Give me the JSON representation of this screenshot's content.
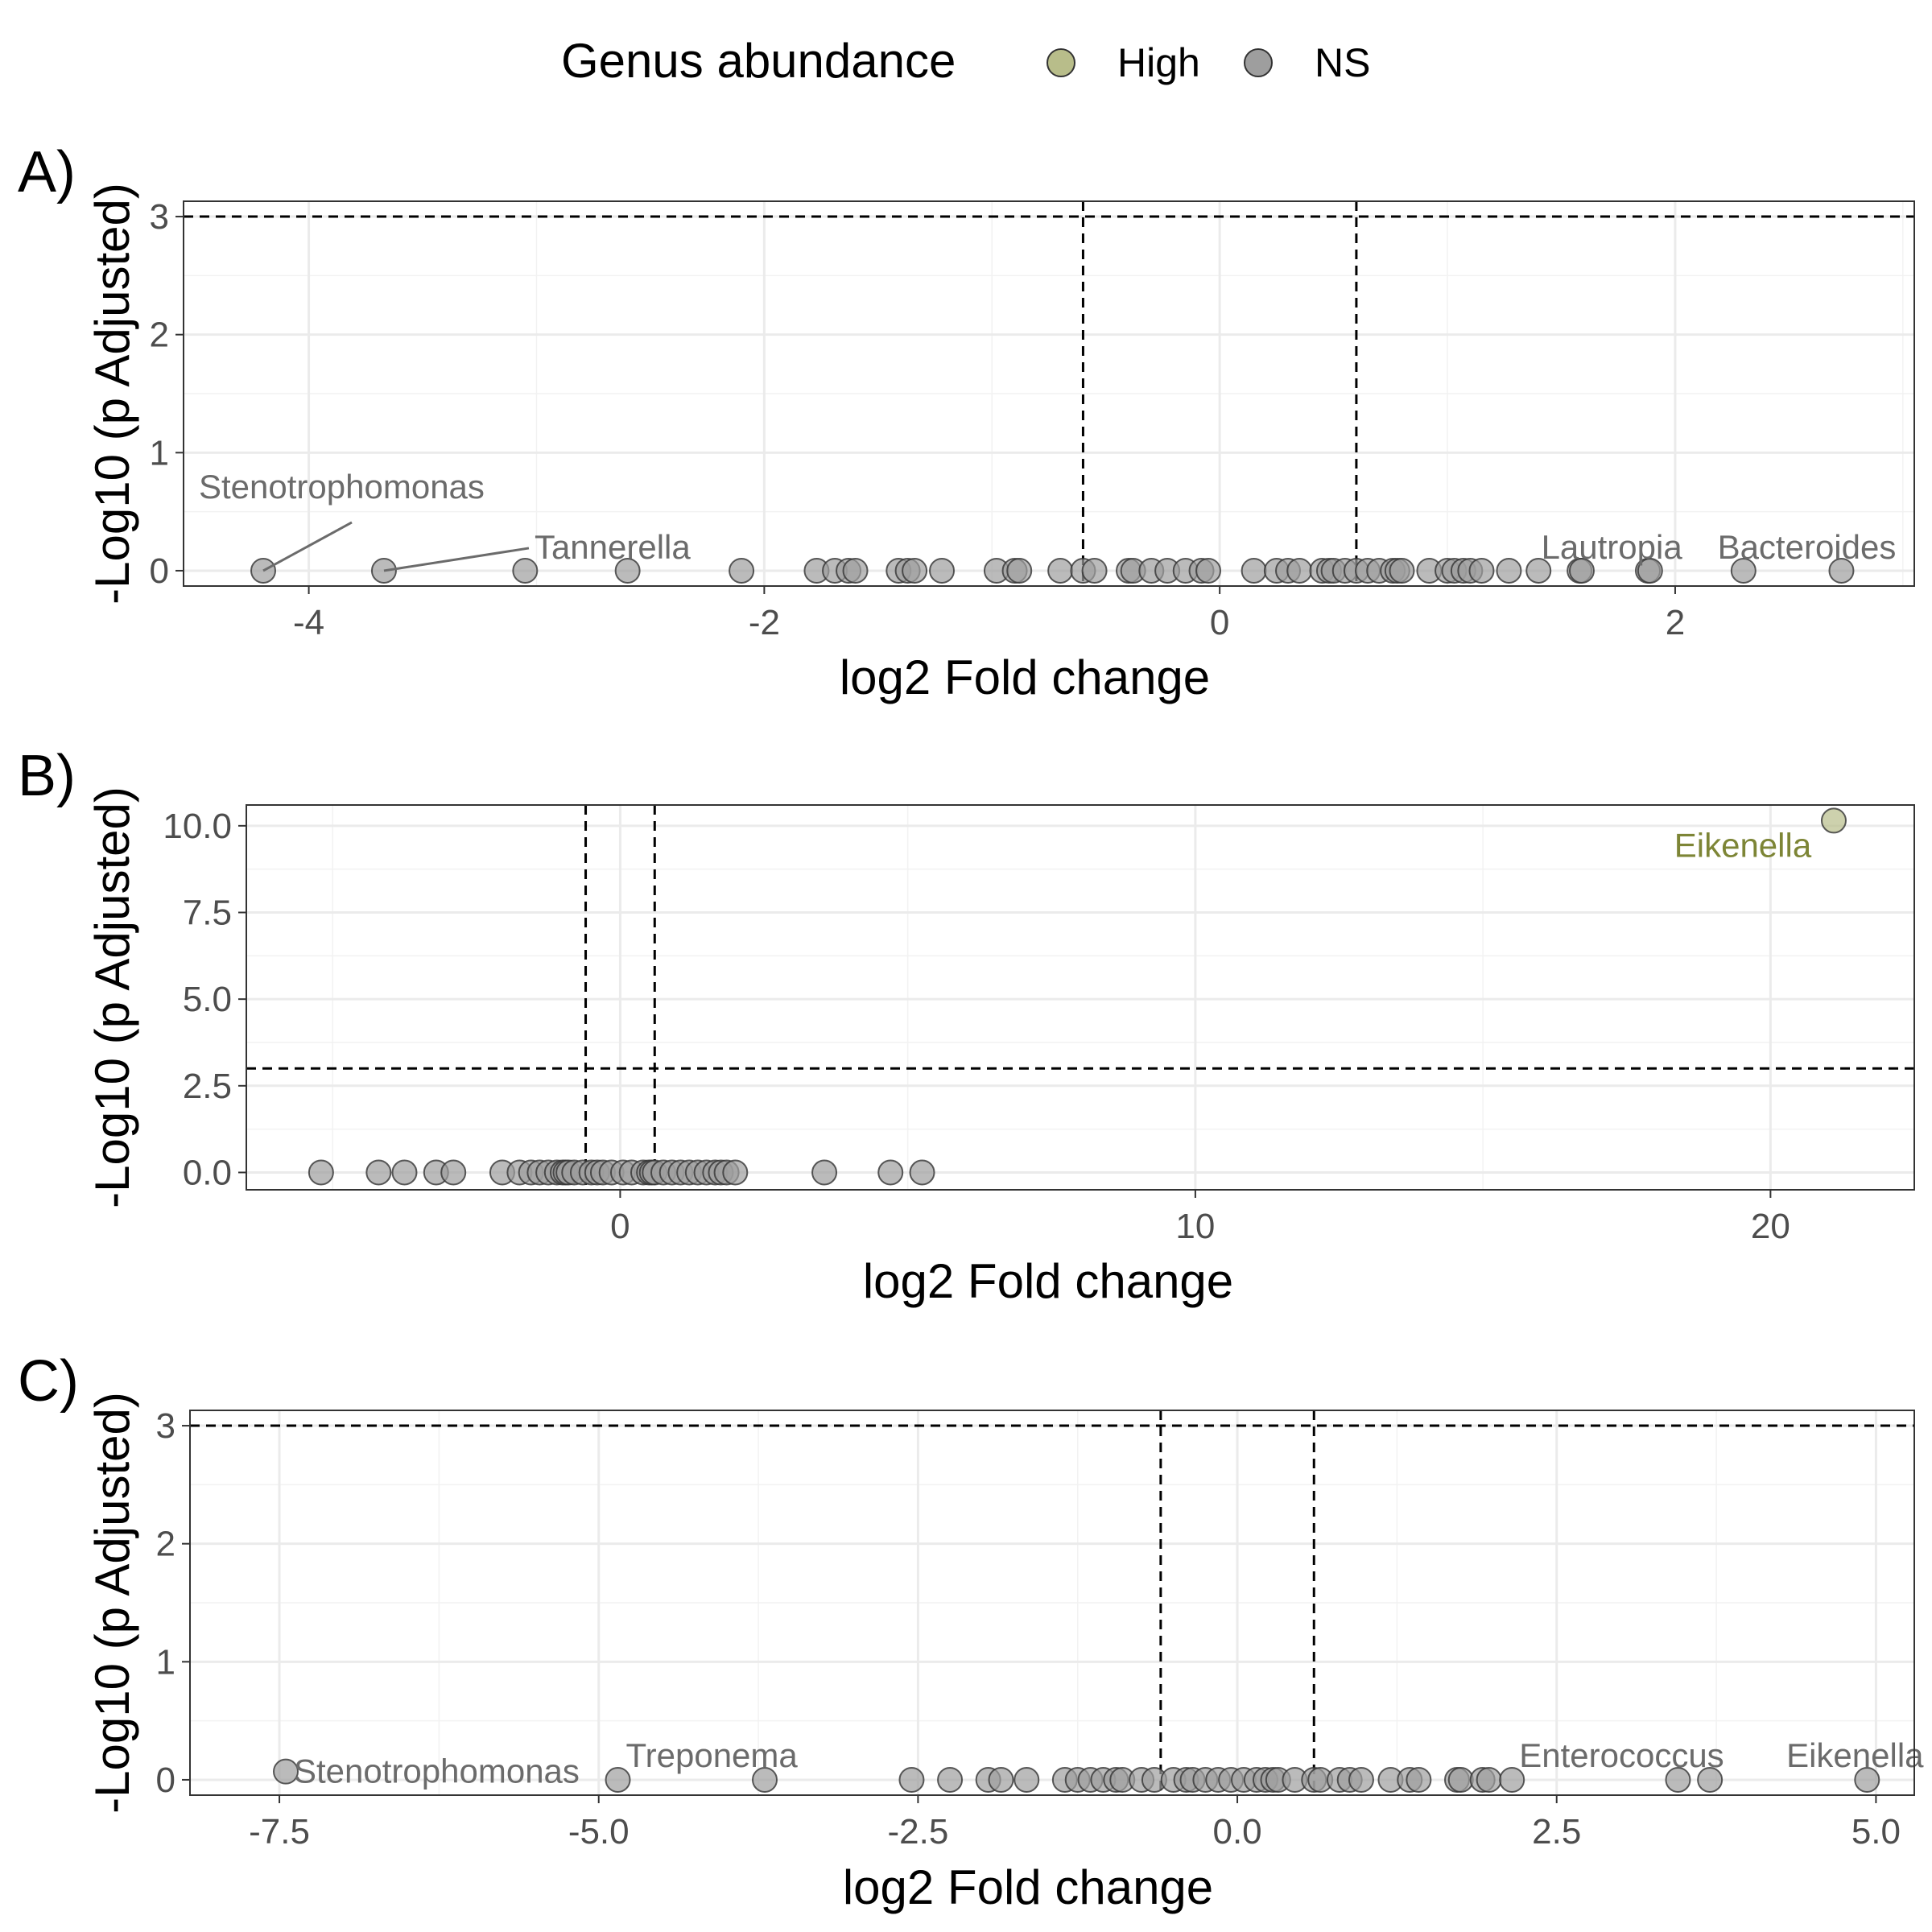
{
  "legend": {
    "title": "Genus abundance",
    "items": [
      {
        "label": "High",
        "color": "#b8bd8a"
      },
      {
        "label": "NS",
        "color": "#9e9e9e"
      }
    ]
  },
  "colors": {
    "ns": "#9e9e9e",
    "high": "#b8bd8a",
    "high_label": "#7d8536",
    "ns_label": "#6b6b6b"
  },
  "chart_data": [
    {
      "panel": "A)",
      "type": "scatter",
      "xlabel": "log2 Fold change",
      "ylabel": "-Log10 (p Adjusted)",
      "xlim": [
        -4.55,
        3.05
      ],
      "ylim": [
        -0.13,
        3.13
      ],
      "xticks": [
        -4,
        -2,
        0,
        2
      ],
      "xtick_labels": [
        "-4",
        "-2",
        "0",
        "2"
      ],
      "yticks": [
        0,
        1,
        2,
        3
      ],
      "ytick_labels": [
        "0",
        "1",
        "2",
        "3"
      ],
      "hline": 3,
      "vlines": [
        -0.6,
        0.6
      ],
      "points": [
        {
          "x": -4.2,
          "y": 0,
          "group": "NS"
        },
        {
          "x": -3.67,
          "y": 0,
          "group": "NS"
        },
        {
          "x": -3.05,
          "y": 0,
          "group": "NS"
        },
        {
          "x": -2.6,
          "y": 0,
          "group": "NS"
        },
        {
          "x": -2.1,
          "y": 0,
          "group": "NS"
        },
        {
          "x": -1.77,
          "y": 0,
          "group": "NS"
        },
        {
          "x": -1.69,
          "y": 0,
          "group": "NS"
        },
        {
          "x": -1.63,
          "y": 0,
          "group": "NS"
        },
        {
          "x": -1.6,
          "y": 0,
          "group": "NS"
        },
        {
          "x": -1.41,
          "y": 0,
          "group": "NS"
        },
        {
          "x": -1.37,
          "y": 0,
          "group": "NS"
        },
        {
          "x": -1.34,
          "y": 0,
          "group": "NS"
        },
        {
          "x": -1.22,
          "y": 0,
          "group": "NS"
        },
        {
          "x": -0.98,
          "y": 0,
          "group": "NS"
        },
        {
          "x": -0.9,
          "y": 0,
          "group": "NS"
        },
        {
          "x": -0.88,
          "y": 0,
          "group": "NS"
        },
        {
          "x": -0.7,
          "y": 0,
          "group": "NS"
        },
        {
          "x": -0.6,
          "y": 0,
          "group": "NS"
        },
        {
          "x": -0.55,
          "y": 0,
          "group": "NS"
        },
        {
          "x": -0.4,
          "y": 0,
          "group": "NS"
        },
        {
          "x": -0.38,
          "y": 0,
          "group": "NS"
        },
        {
          "x": -0.3,
          "y": 0,
          "group": "NS"
        },
        {
          "x": -0.23,
          "y": 0,
          "group": "NS"
        },
        {
          "x": -0.15,
          "y": 0,
          "group": "NS"
        },
        {
          "x": -0.08,
          "y": 0,
          "group": "NS"
        },
        {
          "x": -0.05,
          "y": 0,
          "group": "NS"
        },
        {
          "x": 0.15,
          "y": 0,
          "group": "NS"
        },
        {
          "x": 0.25,
          "y": 0,
          "group": "NS"
        },
        {
          "x": 0.3,
          "y": 0,
          "group": "NS"
        },
        {
          "x": 0.35,
          "y": 0,
          "group": "NS"
        },
        {
          "x": 0.45,
          "y": 0,
          "group": "NS"
        },
        {
          "x": 0.48,
          "y": 0,
          "group": "NS"
        },
        {
          "x": 0.5,
          "y": 0,
          "group": "NS"
        },
        {
          "x": 0.55,
          "y": 0,
          "group": "NS"
        },
        {
          "x": 0.6,
          "y": 0,
          "group": "NS"
        },
        {
          "x": 0.65,
          "y": 0,
          "group": "NS"
        },
        {
          "x": 0.7,
          "y": 0,
          "group": "NS"
        },
        {
          "x": 0.76,
          "y": 0,
          "group": "NS"
        },
        {
          "x": 0.78,
          "y": 0,
          "group": "NS"
        },
        {
          "x": 0.8,
          "y": 0,
          "group": "NS"
        },
        {
          "x": 0.92,
          "y": 0,
          "group": "NS"
        },
        {
          "x": 1.0,
          "y": 0,
          "group": "NS"
        },
        {
          "x": 1.03,
          "y": 0,
          "group": "NS"
        },
        {
          "x": 1.07,
          "y": 0,
          "group": "NS"
        },
        {
          "x": 1.1,
          "y": 0,
          "group": "NS"
        },
        {
          "x": 1.15,
          "y": 0,
          "group": "NS"
        },
        {
          "x": 1.27,
          "y": 0,
          "group": "NS"
        },
        {
          "x": 1.4,
          "y": 0,
          "group": "NS"
        },
        {
          "x": 1.58,
          "y": 0,
          "group": "NS"
        },
        {
          "x": 1.59,
          "y": 0,
          "group": "NS"
        },
        {
          "x": 1.88,
          "y": 0,
          "group": "NS"
        },
        {
          "x": 1.89,
          "y": 0,
          "group": "NS"
        },
        {
          "x": 2.3,
          "y": 0,
          "group": "NS"
        },
        {
          "x": 2.73,
          "y": 0,
          "group": "NS"
        }
      ],
      "labels": [
        {
          "text": "Stenotrophomonas",
          "x": -4.2,
          "y": 0,
          "group": "NS"
        },
        {
          "text": "Tannerella",
          "x": -3.67,
          "y": 0,
          "group": "NS"
        },
        {
          "text": "Lautropia",
          "x": 1.58,
          "y": 0,
          "group": "NS"
        },
        {
          "text": "Bacteroides",
          "x": 2.73,
          "y": 0,
          "group": "NS"
        }
      ]
    },
    {
      "panel": "B)",
      "type": "scatter",
      "xlabel": "log2 Fold change",
      "ylabel": "-Log10 (p Adjusted)",
      "xlim": [
        -6.5,
        22.5
      ],
      "ylim": [
        -0.5,
        10.6
      ],
      "xticks": [
        0,
        10,
        20
      ],
      "xtick_labels": [
        "0",
        "10",
        "20"
      ],
      "yticks": [
        0,
        2.5,
        5,
        7.5,
        10
      ],
      "ytick_labels": [
        "0.0",
        "2.5",
        "5.0",
        "7.5",
        "10.0"
      ],
      "hline": 3,
      "vlines": [
        -0.6,
        0.6
      ],
      "points": [
        {
          "x": -5.2,
          "y": 0,
          "group": "NS"
        },
        {
          "x": -4.2,
          "y": 0,
          "group": "NS"
        },
        {
          "x": -3.75,
          "y": 0,
          "group": "NS"
        },
        {
          "x": -3.2,
          "y": 0,
          "group": "NS"
        },
        {
          "x": -2.9,
          "y": 0,
          "group": "NS"
        },
        {
          "x": -2.05,
          "y": 0,
          "group": "NS"
        },
        {
          "x": -1.75,
          "y": 0,
          "group": "NS"
        },
        {
          "x": -1.55,
          "y": 0,
          "group": "NS"
        },
        {
          "x": -1.4,
          "y": 0,
          "group": "NS"
        },
        {
          "x": -1.25,
          "y": 0,
          "group": "NS"
        },
        {
          "x": -1.1,
          "y": 0,
          "group": "NS"
        },
        {
          "x": -1.0,
          "y": 0,
          "group": "NS"
        },
        {
          "x": -0.95,
          "y": 0,
          "group": "NS"
        },
        {
          "x": -0.9,
          "y": 0,
          "group": "NS"
        },
        {
          "x": -0.8,
          "y": 0,
          "group": "NS"
        },
        {
          "x": -0.65,
          "y": 0,
          "group": "NS"
        },
        {
          "x": -0.5,
          "y": 0,
          "group": "NS"
        },
        {
          "x": -0.4,
          "y": 0,
          "group": "NS"
        },
        {
          "x": -0.3,
          "y": 0,
          "group": "NS"
        },
        {
          "x": -0.15,
          "y": 0,
          "group": "NS"
        },
        {
          "x": 0.05,
          "y": 0,
          "group": "NS"
        },
        {
          "x": 0.2,
          "y": 0,
          "group": "NS"
        },
        {
          "x": 0.4,
          "y": 0,
          "group": "NS"
        },
        {
          "x": 0.5,
          "y": 0,
          "group": "NS"
        },
        {
          "x": 0.55,
          "y": 0,
          "group": "NS"
        },
        {
          "x": 0.6,
          "y": 0,
          "group": "NS"
        },
        {
          "x": 0.75,
          "y": 0,
          "group": "NS"
        },
        {
          "x": 0.9,
          "y": 0,
          "group": "NS"
        },
        {
          "x": 1.05,
          "y": 0,
          "group": "NS"
        },
        {
          "x": 1.2,
          "y": 0,
          "group": "NS"
        },
        {
          "x": 1.35,
          "y": 0,
          "group": "NS"
        },
        {
          "x": 1.5,
          "y": 0,
          "group": "NS"
        },
        {
          "x": 1.65,
          "y": 0,
          "group": "NS"
        },
        {
          "x": 1.75,
          "y": 0,
          "group": "NS"
        },
        {
          "x": 1.85,
          "y": 0,
          "group": "NS"
        },
        {
          "x": 2.0,
          "y": 0,
          "group": "NS"
        },
        {
          "x": 3.55,
          "y": 0,
          "group": "NS"
        },
        {
          "x": 4.7,
          "y": 0,
          "group": "NS"
        },
        {
          "x": 5.25,
          "y": 0,
          "group": "NS"
        },
        {
          "x": 21.1,
          "y": 10.15,
          "group": "High"
        }
      ],
      "labels": [
        {
          "text": "Eikenella",
          "x": 21.1,
          "y": 10.15,
          "group": "High"
        }
      ]
    },
    {
      "panel": "C)",
      "type": "scatter",
      "xlabel": "log2 Fold change",
      "ylabel": "-Log10 (p Adjusted)",
      "xlim": [
        -8.2,
        5.3
      ],
      "ylim": [
        -0.13,
        3.13
      ],
      "xticks": [
        -7.5,
        -5.0,
        -2.5,
        0.0,
        2.5,
        5.0
      ],
      "xtick_labels": [
        "-7.5",
        "-5.0",
        "-2.5",
        "0.0",
        "2.5",
        "5.0"
      ],
      "yticks": [
        0,
        1,
        2,
        3
      ],
      "ytick_labels": [
        "0",
        "1",
        "2",
        "3"
      ],
      "hline": 3,
      "vlines": [
        -0.6,
        0.6
      ],
      "points": [
        {
          "x": -7.45,
          "y": 0.07,
          "group": "NS"
        },
        {
          "x": -4.85,
          "y": 0,
          "group": "NS"
        },
        {
          "x": -3.7,
          "y": 0,
          "group": "NS"
        },
        {
          "x": -2.55,
          "y": 0,
          "group": "NS"
        },
        {
          "x": -2.25,
          "y": 0,
          "group": "NS"
        },
        {
          "x": -1.95,
          "y": 0,
          "group": "NS"
        },
        {
          "x": -1.85,
          "y": 0,
          "group": "NS"
        },
        {
          "x": -1.65,
          "y": 0,
          "group": "NS"
        },
        {
          "x": -1.35,
          "y": 0,
          "group": "NS"
        },
        {
          "x": -1.25,
          "y": 0,
          "group": "NS"
        },
        {
          "x": -1.15,
          "y": 0,
          "group": "NS"
        },
        {
          "x": -1.05,
          "y": 0,
          "group": "NS"
        },
        {
          "x": -0.95,
          "y": 0,
          "group": "NS"
        },
        {
          "x": -0.9,
          "y": 0,
          "group": "NS"
        },
        {
          "x": -0.75,
          "y": 0,
          "group": "NS"
        },
        {
          "x": -0.65,
          "y": 0,
          "group": "NS"
        },
        {
          "x": -0.5,
          "y": 0,
          "group": "NS"
        },
        {
          "x": -0.4,
          "y": 0,
          "group": "NS"
        },
        {
          "x": -0.35,
          "y": 0,
          "group": "NS"
        },
        {
          "x": -0.25,
          "y": 0,
          "group": "NS"
        },
        {
          "x": -0.15,
          "y": 0,
          "group": "NS"
        },
        {
          "x": -0.05,
          "y": 0,
          "group": "NS"
        },
        {
          "x": 0.05,
          "y": 0,
          "group": "NS"
        },
        {
          "x": 0.15,
          "y": 0,
          "group": "NS"
        },
        {
          "x": 0.22,
          "y": 0,
          "group": "NS"
        },
        {
          "x": 0.28,
          "y": 0,
          "group": "NS"
        },
        {
          "x": 0.32,
          "y": 0,
          "group": "NS"
        },
        {
          "x": 0.45,
          "y": 0,
          "group": "NS"
        },
        {
          "x": 0.6,
          "y": 0,
          "group": "NS"
        },
        {
          "x": 0.65,
          "y": 0,
          "group": "NS"
        },
        {
          "x": 0.8,
          "y": 0,
          "group": "NS"
        },
        {
          "x": 0.88,
          "y": 0,
          "group": "NS"
        },
        {
          "x": 0.97,
          "y": 0,
          "group": "NS"
        },
        {
          "x": 1.2,
          "y": 0,
          "group": "NS"
        },
        {
          "x": 1.35,
          "y": 0,
          "group": "NS"
        },
        {
          "x": 1.42,
          "y": 0,
          "group": "NS"
        },
        {
          "x": 1.72,
          "y": 0,
          "group": "NS"
        },
        {
          "x": 1.75,
          "y": 0,
          "group": "NS"
        },
        {
          "x": 1.92,
          "y": 0,
          "group": "NS"
        },
        {
          "x": 1.97,
          "y": 0,
          "group": "NS"
        },
        {
          "x": 2.15,
          "y": 0,
          "group": "NS"
        },
        {
          "x": 3.45,
          "y": 0,
          "group": "NS"
        },
        {
          "x": 3.7,
          "y": 0,
          "group": "NS"
        },
        {
          "x": 4.93,
          "y": 0,
          "group": "NS"
        }
      ],
      "labels": [
        {
          "text": "Stenotrophomonas",
          "x": -7.45,
          "y": 0.07,
          "group": "NS"
        },
        {
          "text": "Treponema",
          "x": -4.85,
          "y": 0,
          "group": "NS"
        },
        {
          "text": "Enterococcus",
          "x": 3.45,
          "y": 0,
          "group": "NS"
        },
        {
          "text": "Eikenella",
          "x": 4.93,
          "y": 0,
          "group": "NS"
        }
      ]
    }
  ]
}
